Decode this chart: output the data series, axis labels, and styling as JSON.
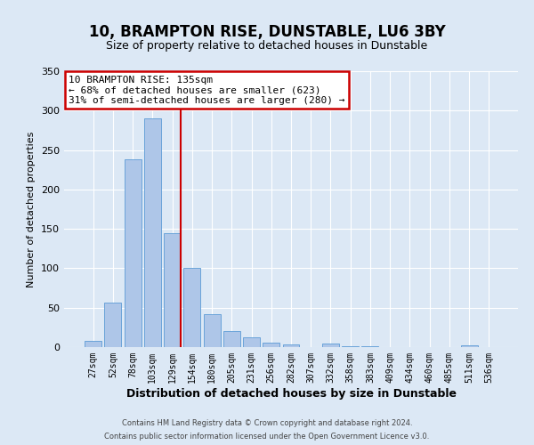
{
  "title": "10, BRAMPTON RISE, DUNSTABLE, LU6 3BY",
  "subtitle": "Size of property relative to detached houses in Dunstable",
  "xlabel": "Distribution of detached houses by size in Dunstable",
  "ylabel": "Number of detached properties",
  "bin_labels": [
    "27sqm",
    "52sqm",
    "78sqm",
    "103sqm",
    "129sqm",
    "154sqm",
    "180sqm",
    "205sqm",
    "231sqm",
    "256sqm",
    "282sqm",
    "307sqm",
    "332sqm",
    "358sqm",
    "383sqm",
    "409sqm",
    "434sqm",
    "460sqm",
    "485sqm",
    "511sqm",
    "536sqm"
  ],
  "bar_values": [
    8,
    57,
    238,
    290,
    145,
    101,
    42,
    20,
    12,
    6,
    3,
    0,
    4,
    1,
    1,
    0,
    0,
    0,
    0,
    2,
    0
  ],
  "bar_color": "#aec6e8",
  "bar_edge_color": "#5b9bd5",
  "vline_color": "#cc0000",
  "ylim": [
    0,
    350
  ],
  "yticks": [
    0,
    50,
    100,
    150,
    200,
    250,
    300,
    350
  ],
  "annotation_text": "10 BRAMPTON RISE: 135sqm\n← 68% of detached houses are smaller (623)\n31% of semi-detached houses are larger (280) →",
  "annotation_box_color": "#ffffff",
  "annotation_box_edge_color": "#cc0000",
  "footer_line1": "Contains HM Land Registry data © Crown copyright and database right 2024.",
  "footer_line2": "Contains public sector information licensed under the Open Government Licence v3.0.",
  "background_color": "#dce8f5",
  "plot_background_color": "#dce8f5",
  "grid_color": "#ffffff",
  "title_fontsize": 12,
  "subtitle_fontsize": 9,
  "ylabel_fontsize": 8,
  "xlabel_fontsize": 9,
  "tick_fontsize": 7,
  "annotation_fontsize": 8,
  "footer_fontsize": 6
}
